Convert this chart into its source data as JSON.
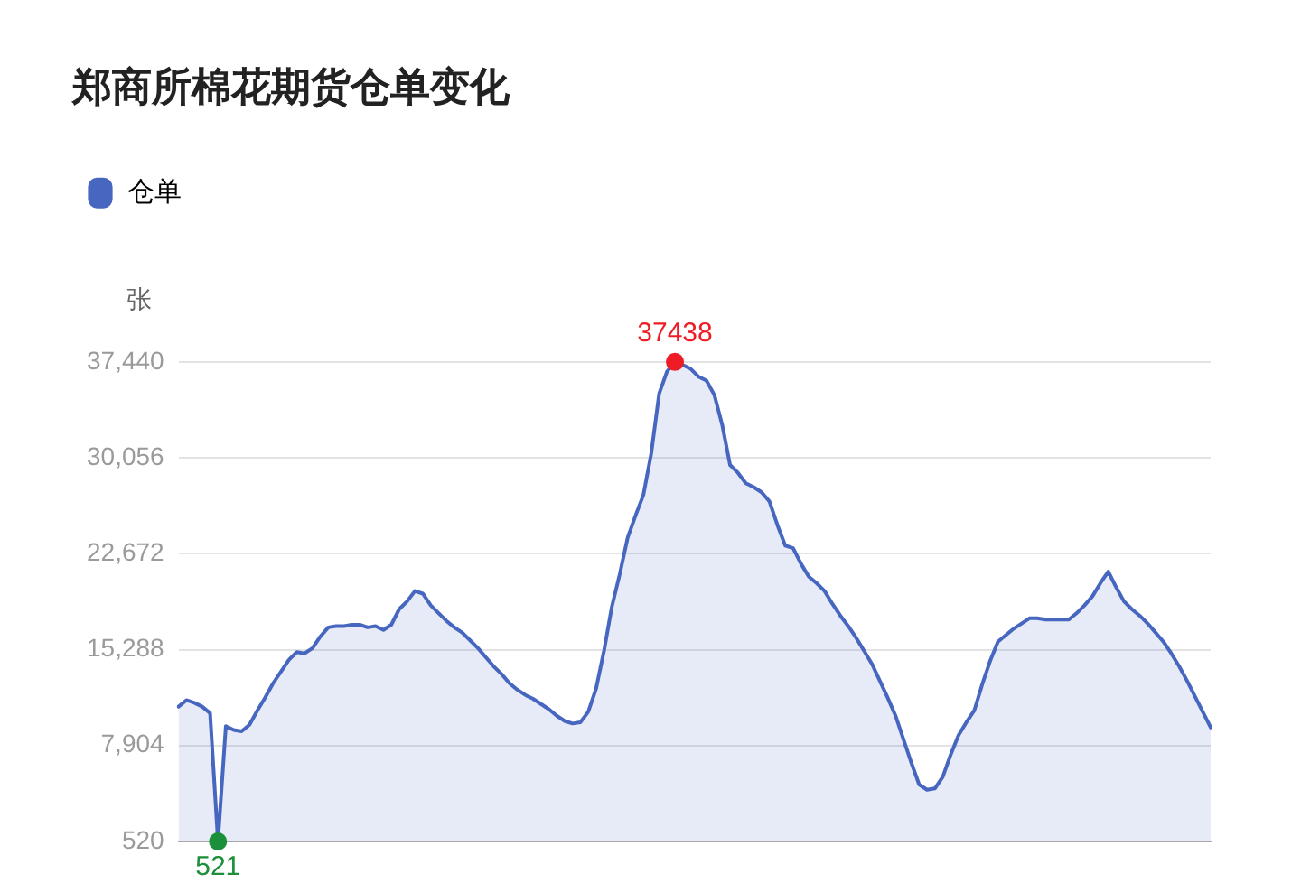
{
  "chart_data": {
    "type": "area",
    "title": "郑商所棉花期货仓单变化",
    "ylabel": "张",
    "legend": "top left",
    "grid": "y",
    "tick_labels": "y",
    "categories": [
      null,
      null,
      null,
      null,
      null,
      null,
      null,
      null,
      null,
      null,
      null,
      null,
      null,
      null,
      null,
      null,
      null,
      null,
      null,
      null,
      null,
      null,
      null,
      null,
      null,
      null,
      null,
      null,
      null,
      null,
      null,
      null,
      null,
      null,
      null,
      null,
      null,
      null,
      null,
      null,
      null,
      null,
      null,
      null,
      null,
      null,
      null,
      null,
      null,
      null,
      null,
      null,
      null,
      null,
      null,
      null,
      null,
      null,
      null,
      null,
      null,
      null,
      null,
      null,
      null,
      null,
      null,
      null,
      null,
      null,
      null,
      null,
      null,
      null,
      null,
      null,
      null,
      null,
      null,
      null,
      null,
      null,
      null,
      null,
      null,
      null,
      null,
      null,
      null,
      null,
      null,
      null,
      null,
      null,
      null,
      null,
      null,
      null,
      null,
      null,
      null,
      null,
      null,
      null,
      null,
      null,
      null,
      null,
      null,
      null,
      null,
      null,
      null,
      null,
      null,
      null,
      null,
      null,
      null,
      null,
      null,
      null,
      null,
      null,
      null,
      null,
      null,
      null,
      null,
      null,
      null,
      null
    ],
    "series": [
      {
        "name": "仓单",
        "color": "#4666c0",
        "values": [
          10900,
          11400,
          11200,
          10900,
          10400,
          521,
          9400,
          9100,
          9000,
          9500,
          10600,
          11600,
          12700,
          13600,
          14500,
          15100,
          15000,
          15400,
          16300,
          17000,
          17100,
          17100,
          17200,
          17200,
          17000,
          17100,
          16800,
          17200,
          18400,
          19000,
          19800,
          19600,
          18700,
          18100,
          17500,
          17000,
          16600,
          16000,
          15400,
          14700,
          14000,
          13400,
          12700,
          12200,
          11800,
          11500,
          11100,
          10700,
          10200,
          9800,
          9600,
          9700,
          10500,
          12300,
          15200,
          18600,
          21100,
          23900,
          25600,
          27200,
          30400,
          35000,
          36700,
          37438,
          37200,
          36900,
          36300,
          36000,
          34900,
          32600,
          29500,
          28900,
          28100,
          27800,
          27400,
          26700,
          24900,
          23300,
          23100,
          21900,
          20900,
          20400,
          19800,
          18800,
          17900,
          17100,
          16200,
          15200,
          14200,
          12900,
          11600,
          10200,
          8400,
          6600,
          4900,
          4500,
          4600,
          5500,
          7200,
          8700,
          9700,
          10600,
          12600,
          14400,
          15900,
          16400,
          16900,
          17300,
          17700,
          17700,
          17600,
          17600,
          17600,
          17600,
          18100,
          18700,
          19400,
          20400,
          21300,
          20100,
          19000,
          18400,
          17900,
          17300,
          16600,
          15900,
          15000,
          14000,
          12900,
          11700,
          10500,
          9300
        ]
      }
    ],
    "ylim": [
      520,
      37440
    ],
    "yticks": [
      520,
      {
        "value": 7904,
        "label": "7,904"
      },
      {
        "value": 15288,
        "label": "15,288"
      },
      {
        "value": 22672,
        "label": "22,672"
      },
      {
        "value": 30056,
        "label": "30,056"
      },
      {
        "value": 37440,
        "label": "37,440"
      }
    ],
    "annotations": [
      {
        "text": "37438",
        "y": 37438
      },
      {
        "text": "521",
        "y": 521
      }
    ]
  }
}
